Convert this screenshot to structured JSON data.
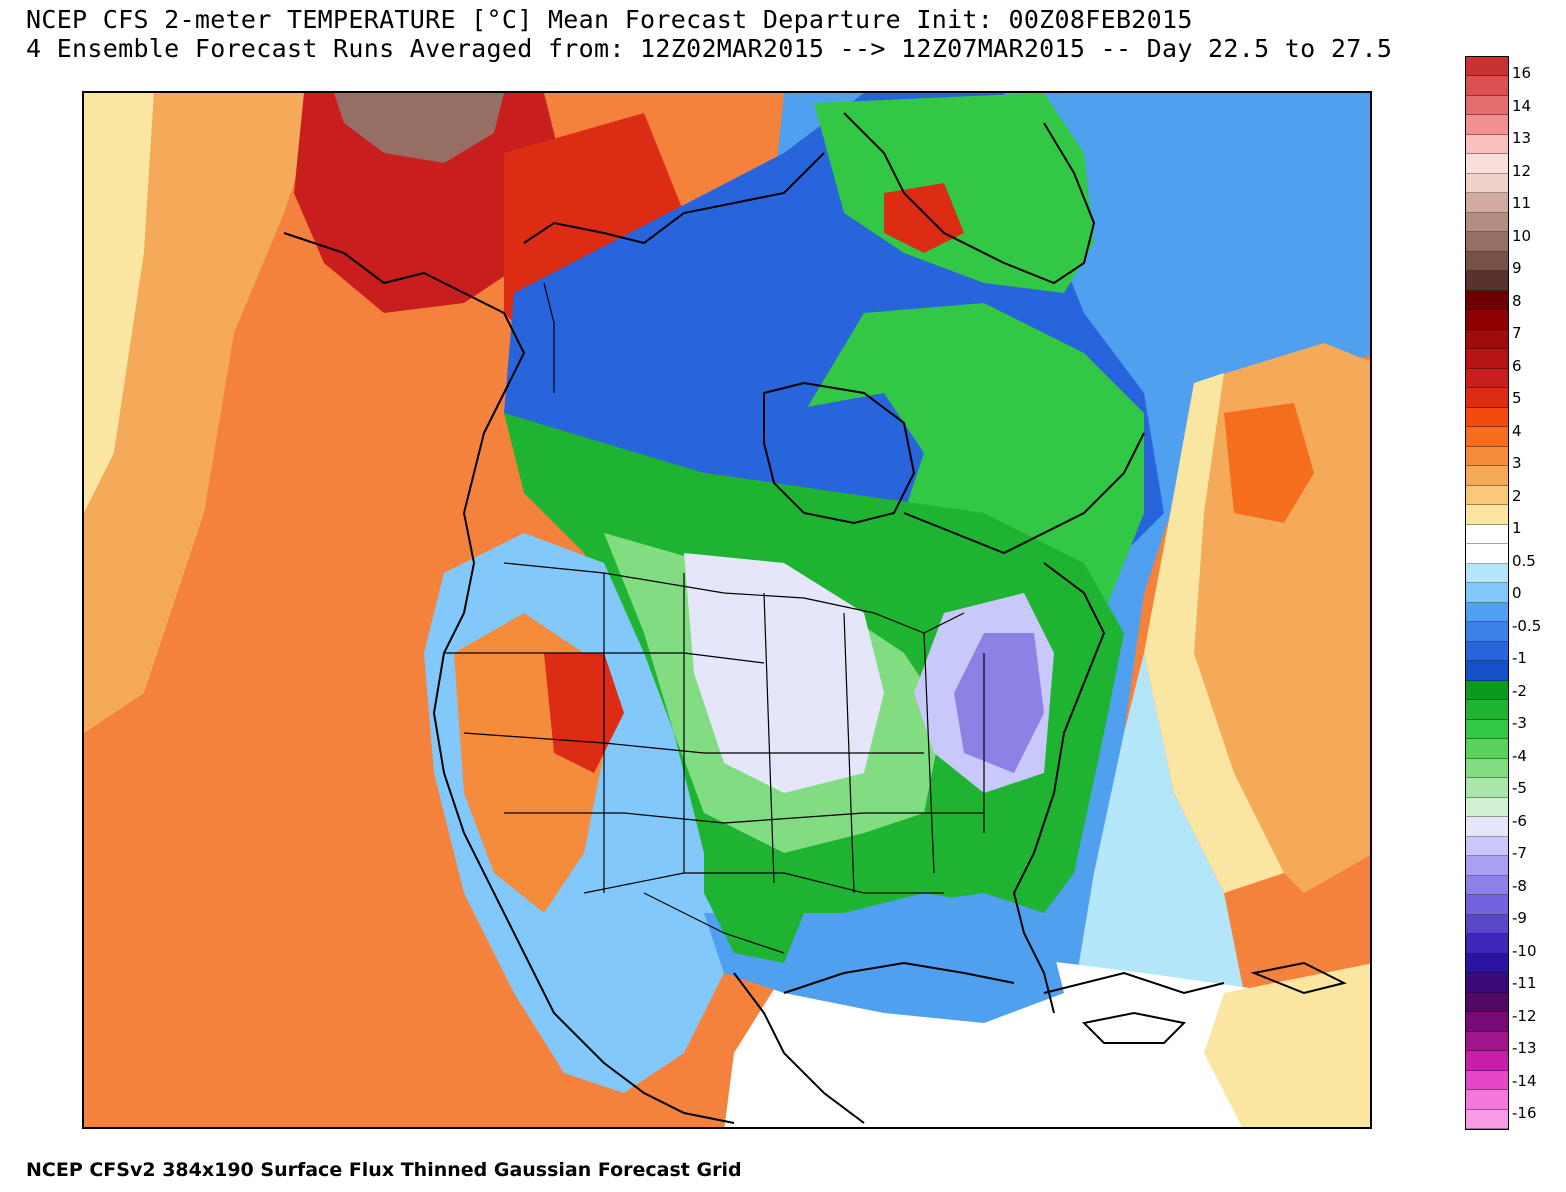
{
  "title": {
    "line1": "NCEP CFS 2-meter TEMPERATURE [°C] Mean Forecast Departure Init: 00Z08FEB2015",
    "line2": "4 Ensemble Forecast Runs Averaged from: 12Z02MAR2015 --> 12Z07MAR2015 -- Day 22.5 to 27.5"
  },
  "footer": "NCEP CFSv2 384x190 Surface Flux Thinned Gaussian Forecast Grid",
  "legend": {
    "ticks": [
      "16",
      "14",
      "13",
      "12",
      "11",
      "10",
      "9",
      "8",
      "7",
      "6",
      "5",
      "4",
      "3",
      "2",
      "1",
      "0.5",
      "0",
      "-0.5",
      "-1",
      "-2",
      "-3",
      "-4",
      "-5",
      "-6",
      "-7",
      "-8",
      "-9",
      "-10",
      "-11",
      "-12",
      "-13",
      "-14",
      "-16"
    ],
    "colors": [
      "#c83232",
      "#dc5050",
      "#e46e6e",
      "#f09090",
      "#fac0c0",
      "#fae0dc",
      "#f0d2c8",
      "#d2aaa0",
      "#b48c80",
      "#966e64",
      "#785046",
      "#5a322d",
      "#6e0000",
      "#8c0000",
      "#a00a0a",
      "#b41414",
      "#c81e1e",
      "#dc2d14",
      "#f04b0a",
      "#f56e1e",
      "#f58c3c",
      "#f5aa5a",
      "#fac878",
      "#fae6a0",
      "#ffffff",
      "#ffffff",
      "#b4e6fa",
      "#82c8fa",
      "#50a0f0",
      "#3c82e6",
      "#2864dc",
      "#1450c8",
      "#0a9b1e",
      "#1eb432",
      "#32c846",
      "#5ad25a",
      "#82dc82",
      "#aae6aa",
      "#d2f0d2",
      "#e6e6fa",
      "#c8c8fa",
      "#aaa0f0",
      "#8c82e6",
      "#7264dc",
      "#5a46c8",
      "#3c28b4",
      "#2814a0",
      "#3c0a78",
      "#500a64",
      "#780a78",
      "#a0148c",
      "#c81eaa",
      "#e646c8",
      "#f578dc",
      "#fa9be6"
    ]
  }
}
